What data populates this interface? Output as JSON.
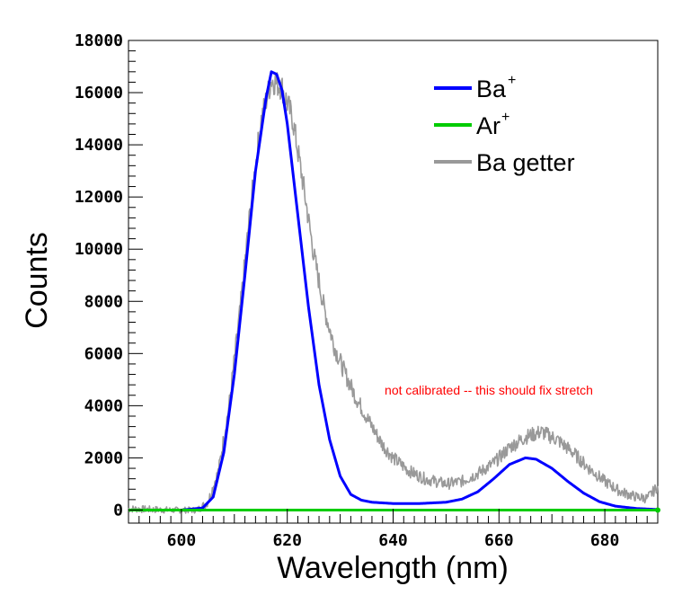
{
  "chart_data": {
    "type": "line",
    "xlabel": "Wavelength (nm)",
    "ylabel": "Counts",
    "xlim": [
      590,
      690
    ],
    "ylim": [
      -500,
      18000
    ],
    "x_ticks": [
      600,
      620,
      640,
      660,
      680
    ],
    "y_ticks": [
      0,
      2000,
      4000,
      6000,
      8000,
      10000,
      12000,
      14000,
      16000,
      18000
    ],
    "x_tick_labels": [
      "600",
      "620",
      "640",
      "660",
      "680"
    ],
    "y_tick_labels": [
      "0",
      "2000",
      "4000",
      "6000",
      "8000",
      "10000",
      "12000",
      "14000",
      "16000",
      "18000"
    ],
    "grid": false,
    "legend_position": "top-right",
    "annotation": {
      "text": "not calibrated -- this should fix stretch",
      "color": "#ff0000"
    },
    "series": [
      {
        "name": "Ba",
        "name_superscript": "+",
        "color": "#0000ff",
        "noisy": false,
        "points": [
          [
            590,
            0
          ],
          [
            600,
            0
          ],
          [
            604,
            80
          ],
          [
            606,
            500
          ],
          [
            608,
            2200
          ],
          [
            610,
            5200
          ],
          [
            612,
            9000
          ],
          [
            614,
            13000
          ],
          [
            616,
            15800
          ],
          [
            617,
            16800
          ],
          [
            618,
            16700
          ],
          [
            619,
            16100
          ],
          [
            620,
            14800
          ],
          [
            622,
            11300
          ],
          [
            624,
            7800
          ],
          [
            626,
            4800
          ],
          [
            628,
            2700
          ],
          [
            630,
            1300
          ],
          [
            632,
            600
          ],
          [
            634,
            380
          ],
          [
            636,
            300
          ],
          [
            640,
            250
          ],
          [
            645,
            250
          ],
          [
            650,
            300
          ],
          [
            653,
            420
          ],
          [
            656,
            700
          ],
          [
            659,
            1200
          ],
          [
            662,
            1750
          ],
          [
            665,
            2000
          ],
          [
            667,
            1950
          ],
          [
            670,
            1600
          ],
          [
            673,
            1100
          ],
          [
            676,
            650
          ],
          [
            679,
            320
          ],
          [
            682,
            150
          ],
          [
            686,
            60
          ],
          [
            690,
            20
          ]
        ]
      },
      {
        "name": "Ar",
        "name_superscript": "+",
        "color": "#00cc00",
        "noisy": false,
        "points": [
          [
            590,
            0
          ],
          [
            690,
            0
          ]
        ]
      },
      {
        "name": "Ba getter",
        "name_superscript": "",
        "color": "#999999",
        "noisy": true,
        "points": [
          [
            590,
            50
          ],
          [
            598,
            0
          ],
          [
            603,
            0
          ],
          [
            605,
            300
          ],
          [
            607,
            1500
          ],
          [
            609,
            4000
          ],
          [
            611,
            7500
          ],
          [
            613,
            11500
          ],
          [
            615,
            14900
          ],
          [
            617,
            16500
          ],
          [
            619,
            16200
          ],
          [
            621,
            15000
          ],
          [
            623,
            12500
          ],
          [
            625,
            9800
          ],
          [
            627,
            7700
          ],
          [
            629,
            6200
          ],
          [
            631,
            5200
          ],
          [
            633,
            4300
          ],
          [
            636,
            3200
          ],
          [
            638,
            2500
          ],
          [
            640,
            2000
          ],
          [
            643,
            1500
          ],
          [
            646,
            1200
          ],
          [
            650,
            1000
          ],
          [
            653,
            1100
          ],
          [
            656,
            1400
          ],
          [
            659,
            1800
          ],
          [
            662,
            2400
          ],
          [
            665,
            2800
          ],
          [
            668,
            3000
          ],
          [
            671,
            2700
          ],
          [
            674,
            2200
          ],
          [
            677,
            1600
          ],
          [
            680,
            1100
          ],
          [
            683,
            700
          ],
          [
            686,
            500
          ],
          [
            688,
            450
          ],
          [
            690,
            900
          ]
        ]
      }
    ]
  }
}
